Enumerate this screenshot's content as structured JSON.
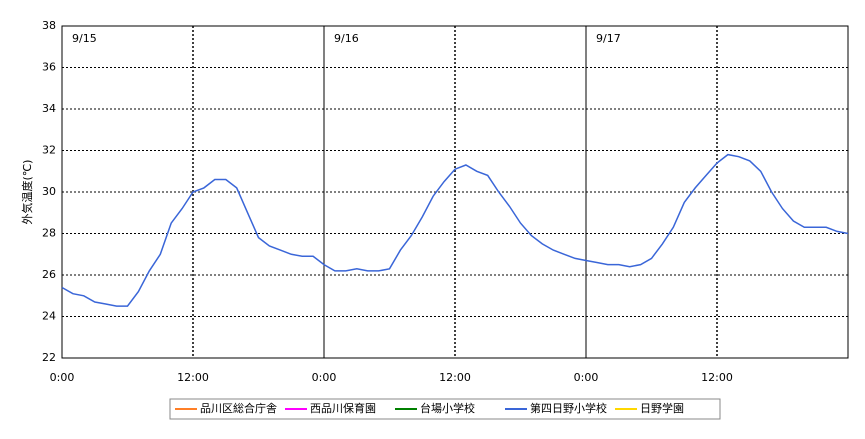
{
  "chart_data": {
    "type": "line",
    "y_label": "外気温度(℃)",
    "days": [
      "9/15",
      "9/16",
      "9/17"
    ],
    "x": [
      0,
      1,
      2,
      3,
      4,
      5,
      6,
      7,
      8,
      9,
      10,
      11,
      12,
      13,
      14,
      15,
      16,
      17,
      18,
      19,
      20,
      21,
      22,
      23,
      24,
      25,
      26,
      27,
      28,
      29,
      30,
      31,
      32,
      33,
      34,
      35,
      36,
      37,
      38,
      39,
      40,
      41,
      42,
      43,
      44,
      45,
      46,
      47,
      48,
      49,
      50,
      51,
      52,
      53,
      54,
      55,
      56,
      57,
      58,
      59,
      60,
      61,
      62,
      63,
      64,
      65,
      66,
      67,
      68,
      69,
      70,
      71,
      72
    ],
    "xlim": [
      0,
      72
    ],
    "xticks": [
      {
        "value": 0,
        "label": "0:00"
      },
      {
        "value": 12,
        "label": "12:00"
      },
      {
        "value": 24,
        "label": "0:00"
      },
      {
        "value": 36,
        "label": "12:00"
      },
      {
        "value": 48,
        "label": "0:00"
      },
      {
        "value": 60,
        "label": "12:00"
      }
    ],
    "ylim": [
      22,
      38
    ],
    "yticks": [
      22,
      24,
      26,
      28,
      30,
      32,
      34,
      36,
      38
    ],
    "grid": true,
    "series": [
      {
        "name": "品川区総合庁舎",
        "color": "#ff7f27",
        "values": [
          null,
          null,
          null,
          null,
          null,
          null,
          null,
          null,
          null,
          null,
          null,
          null,
          null,
          null,
          null,
          null,
          null,
          null,
          null,
          null,
          null,
          null,
          null,
          null,
          null,
          null,
          null,
          null,
          null,
          null,
          null,
          null,
          null,
          null,
          null,
          null,
          null,
          null,
          null,
          null,
          null,
          null,
          null,
          null,
          null,
          null,
          null,
          null,
          null,
          null,
          null,
          null,
          null,
          null,
          null,
          null,
          null,
          null,
          null,
          null,
          null,
          null,
          null,
          null,
          null,
          null,
          null,
          null,
          null,
          null,
          null,
          null,
          null
        ]
      },
      {
        "name": "西品川保育園",
        "color": "#ff00ff",
        "values": [
          null,
          null,
          null,
          null,
          null,
          null,
          null,
          null,
          null,
          null,
          null,
          null,
          null,
          null,
          null,
          null,
          null,
          null,
          null,
          null,
          null,
          null,
          null,
          null,
          null,
          null,
          null,
          null,
          null,
          null,
          null,
          null,
          null,
          null,
          null,
          null,
          null,
          null,
          null,
          null,
          null,
          null,
          null,
          null,
          null,
          null,
          null,
          null,
          null,
          null,
          null,
          null,
          null,
          null,
          null,
          null,
          null,
          null,
          null,
          null,
          null,
          null,
          null,
          null,
          null,
          null,
          null,
          null,
          null,
          null,
          null,
          null,
          null
        ]
      },
      {
        "name": "台場小学校",
        "color": "#008000",
        "values": [
          null,
          null,
          null,
          null,
          null,
          null,
          null,
          null,
          null,
          null,
          null,
          null,
          null,
          null,
          null,
          null,
          null,
          null,
          null,
          null,
          null,
          null,
          null,
          null,
          null,
          null,
          null,
          null,
          null,
          null,
          null,
          null,
          null,
          null,
          null,
          null,
          null,
          null,
          null,
          null,
          null,
          null,
          null,
          null,
          null,
          null,
          null,
          null,
          null,
          null,
          null,
          null,
          null,
          null,
          null,
          null,
          null,
          null,
          null,
          null,
          null,
          null,
          null,
          null,
          null,
          null,
          null,
          null,
          null,
          null,
          null,
          null,
          null
        ]
      },
      {
        "name": "第四日野小学校",
        "color": "#3a66d8",
        "values": [
          25.4,
          25.1,
          25.0,
          24.7,
          24.6,
          24.5,
          24.5,
          25.2,
          26.2,
          27.0,
          28.5,
          29.2,
          30.0,
          30.2,
          30.6,
          30.6,
          30.2,
          29.0,
          27.8,
          27.4,
          27.2,
          27.0,
          26.9,
          26.9,
          26.5,
          26.2,
          26.2,
          26.3,
          26.2,
          26.2,
          26.3,
          27.2,
          27.9,
          28.8,
          29.8,
          30.5,
          31.1,
          31.3,
          31.0,
          30.8,
          30.0,
          29.3,
          28.5,
          27.9,
          27.5,
          27.2,
          27.0,
          26.8,
          26.7,
          26.6,
          26.5,
          26.5,
          26.4,
          26.5,
          26.8,
          27.5,
          28.3,
          29.5,
          30.2,
          30.8,
          31.4,
          31.8,
          31.7,
          31.5,
          31.0,
          30.0,
          29.2,
          28.6,
          28.3,
          28.3,
          28.3,
          28.1,
          28.0
        ]
      },
      {
        "name": "日野学園",
        "color": "#ffd700",
        "values": [
          null,
          null,
          null,
          null,
          null,
          null,
          null,
          null,
          null,
          null,
          null,
          null,
          null,
          null,
          null,
          null,
          null,
          null,
          null,
          null,
          null,
          null,
          null,
          null,
          null,
          null,
          null,
          null,
          null,
          null,
          null,
          null,
          null,
          null,
          null,
          null,
          null,
          null,
          null,
          null,
          null,
          null,
          null,
          null,
          null,
          null,
          null,
          null,
          null,
          null,
          null,
          null,
          null,
          null,
          null,
          null,
          null,
          null,
          null,
          null,
          null,
          null,
          null,
          null,
          null,
          null,
          null,
          null,
          null,
          null,
          null,
          null,
          null
        ]
      }
    ]
  }
}
